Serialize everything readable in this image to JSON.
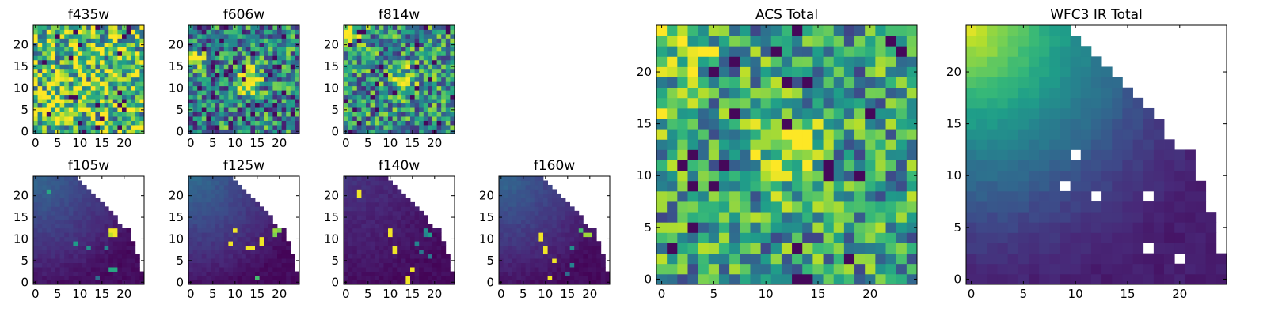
{
  "figure": {
    "background": "#ffffff"
  },
  "colormap": {
    "name": "viridis",
    "stops": [
      "#440154",
      "#482878",
      "#3e4989",
      "#31688e",
      "#26828e",
      "#1f9e89",
      "#35b779",
      "#6ece58",
      "#b5de2b",
      "#fde725"
    ]
  },
  "chart_data": [
    {
      "type": "heatmap",
      "title": "f435w",
      "grid_size": 25,
      "pattern": "noise",
      "mean": 0.7,
      "spread": 0.45,
      "seed": 11,
      "hotspots": [],
      "masked": "none",
      "xticks": [
        0,
        5,
        10,
        15,
        20
      ],
      "yticks": [
        0,
        5,
        10,
        15,
        20
      ],
      "xlim": [
        -0.5,
        24.5
      ],
      "ylim": [
        -0.5,
        24.5
      ]
    },
    {
      "type": "heatmap",
      "title": "f606w",
      "grid_size": 25,
      "pattern": "noise",
      "mean": 0.45,
      "spread": 0.4,
      "seed": 23,
      "hotspots": [
        {
          "x": 13,
          "y": 12,
          "r": 2.2,
          "amp": 0.5
        },
        {
          "x": 1,
          "y": 17,
          "r": 1.5,
          "amp": 0.35
        }
      ],
      "masked": "none",
      "xticks": [
        0,
        5,
        10,
        15,
        20
      ],
      "yticks": [
        0,
        5,
        10,
        15,
        20
      ],
      "xlim": [
        -0.5,
        24.5
      ],
      "ylim": [
        -0.5,
        24.5
      ]
    },
    {
      "type": "heatmap",
      "title": "f814w",
      "grid_size": 25,
      "pattern": "noise",
      "mean": 0.5,
      "spread": 0.38,
      "seed": 37,
      "hotspots": [
        {
          "x": 13,
          "y": 12,
          "r": 2.2,
          "amp": 0.35
        },
        {
          "x": 1,
          "y": 23,
          "r": 2.0,
          "amp": 0.5
        }
      ],
      "masked": "none",
      "xticks": [
        0,
        5,
        10,
        15,
        20
      ],
      "yticks": [
        0,
        5,
        10,
        15,
        20
      ],
      "xlim": [
        -0.5,
        24.5
      ],
      "ylim": [
        -0.5,
        24.5
      ]
    },
    {
      "type": "heatmap",
      "title": "f105w",
      "grid_size": 25,
      "pattern": "gradient",
      "corner_level": 0.3,
      "seed": 41,
      "masked": "upper-right",
      "outliers": [
        {
          "x": 17,
          "y": 12,
          "v": 0.98
        },
        {
          "x": 18,
          "y": 12,
          "v": 0.98
        },
        {
          "x": 18,
          "y": 11,
          "v": 0.98
        },
        {
          "x": 17,
          "y": 11,
          "v": 0.9
        },
        {
          "x": 9,
          "y": 9,
          "v": 0.55
        },
        {
          "x": 12,
          "y": 8,
          "v": 0.5
        },
        {
          "x": 16,
          "y": 8,
          "v": 0.45
        },
        {
          "x": 18,
          "y": 3,
          "v": 0.6
        },
        {
          "x": 17,
          "y": 3,
          "v": 0.6
        },
        {
          "x": 3,
          "y": 21,
          "v": 0.6
        },
        {
          "x": 14,
          "y": 1,
          "v": 0.35
        }
      ],
      "xticks": [
        0,
        5,
        10,
        15,
        20
      ],
      "yticks": [
        0,
        5,
        10,
        15,
        20
      ],
      "xlim": [
        -0.5,
        24.5
      ],
      "ylim": [
        -0.5,
        24.5
      ]
    },
    {
      "type": "heatmap",
      "title": "f125w",
      "grid_size": 25,
      "pattern": "gradient",
      "corner_level": 0.32,
      "seed": 53,
      "masked": "upper-right",
      "outliers": [
        {
          "x": 19,
          "y": 12,
          "v": 0.85
        },
        {
          "x": 20,
          "y": 12,
          "v": 0.8
        },
        {
          "x": 19,
          "y": 11,
          "v": 0.8
        },
        {
          "x": 10,
          "y": 12,
          "v": 0.98
        },
        {
          "x": 9,
          "y": 9,
          "v": 0.98
        },
        {
          "x": 13,
          "y": 8,
          "v": 0.98
        },
        {
          "x": 14,
          "y": 8,
          "v": 0.98
        },
        {
          "x": 16,
          "y": 10,
          "v": 0.98
        },
        {
          "x": 16,
          "y": 9,
          "v": 0.98
        },
        {
          "x": 15,
          "y": 1,
          "v": 0.7
        }
      ],
      "xticks": [
        0,
        5,
        10,
        15,
        20
      ],
      "yticks": [
        0,
        5,
        10,
        15,
        20
      ],
      "xlim": [
        -0.5,
        24.5
      ],
      "ylim": [
        -0.5,
        24.5
      ]
    },
    {
      "type": "heatmap",
      "title": "f140w",
      "grid_size": 25,
      "pattern": "gradient",
      "corner_level": 0.12,
      "seed": 67,
      "masked": "upper-right",
      "outliers": [
        {
          "x": 3,
          "y": 21,
          "v": 0.98
        },
        {
          "x": 3,
          "y": 20,
          "v": 0.98
        },
        {
          "x": 10,
          "y": 11,
          "v": 0.98
        },
        {
          "x": 10,
          "y": 12,
          "v": 0.98
        },
        {
          "x": 11,
          "y": 8,
          "v": 0.98
        },
        {
          "x": 11,
          "y": 7,
          "v": 0.98
        },
        {
          "x": 15,
          "y": 3,
          "v": 0.98
        },
        {
          "x": 14,
          "y": 0,
          "v": 0.98
        },
        {
          "x": 14,
          "y": 1,
          "v": 0.98
        },
        {
          "x": 18,
          "y": 12,
          "v": 0.5
        },
        {
          "x": 19,
          "y": 11,
          "v": 0.55
        },
        {
          "x": 18,
          "y": 11,
          "v": 0.45
        },
        {
          "x": 16,
          "y": 9,
          "v": 0.45
        },
        {
          "x": 17,
          "y": 7,
          "v": 0.4
        },
        {
          "x": 19,
          "y": 6,
          "v": 0.4
        }
      ],
      "xticks": [
        0,
        5,
        10,
        15,
        20
      ],
      "yticks": [
        0,
        5,
        10,
        15,
        20
      ],
      "xlim": [
        -0.5,
        24.5
      ],
      "ylim": [
        -0.5,
        24.5
      ]
    },
    {
      "type": "heatmap",
      "title": "f160w",
      "grid_size": 25,
      "pattern": "gradient",
      "corner_level": 0.3,
      "seed": 79,
      "masked": "upper-right",
      "outliers": [
        {
          "x": 19,
          "y": 11,
          "v": 0.85
        },
        {
          "x": 20,
          "y": 11,
          "v": 0.85
        },
        {
          "x": 18,
          "y": 12,
          "v": 0.7
        },
        {
          "x": 9,
          "y": 11,
          "v": 0.98
        },
        {
          "x": 9,
          "y": 10,
          "v": 0.98
        },
        {
          "x": 10,
          "y": 8,
          "v": 0.98
        },
        {
          "x": 10,
          "y": 7,
          "v": 0.98
        },
        {
          "x": 12,
          "y": 5,
          "v": 0.98
        },
        {
          "x": 11,
          "y": 1,
          "v": 0.98
        },
        {
          "x": 16,
          "y": 8,
          "v": 0.5
        },
        {
          "x": 16,
          "y": 4,
          "v": 0.45
        },
        {
          "x": 15,
          "y": 2,
          "v": 0.35
        }
      ],
      "xticks": [
        0,
        5,
        10,
        15,
        20
      ],
      "yticks": [
        0,
        5,
        10,
        15,
        20
      ],
      "xlim": [
        -0.5,
        24.5
      ],
      "ylim": [
        -0.5,
        24.5
      ]
    },
    {
      "type": "heatmap",
      "title": "ACS Total",
      "grid_size": 25,
      "pattern": "noise",
      "mean": 0.55,
      "spread": 0.35,
      "seed": 97,
      "hotspots": [
        {
          "x": 12,
          "y": 12,
          "r": 2.3,
          "amp": 0.4
        },
        {
          "x": 1,
          "y": 16,
          "r": 1.3,
          "amp": 0.35
        },
        {
          "x": 2,
          "y": 23,
          "r": 2.5,
          "amp": 0.3
        }
      ],
      "masked": "none",
      "xticks": [
        0,
        5,
        10,
        15,
        20
      ],
      "yticks": [
        0,
        5,
        10,
        15,
        20
      ],
      "xlim": [
        -0.5,
        24.5
      ],
      "ylim": [
        -0.5,
        24.5
      ]
    },
    {
      "type": "heatmap",
      "title": "WFC3 IR Total",
      "grid_size": 25,
      "pattern": "gradient",
      "corner_level": 0.95,
      "seed": 101,
      "masked": "upper-right",
      "holes": [
        {
          "x": 10,
          "y": 12
        },
        {
          "x": 9,
          "y": 9
        },
        {
          "x": 12,
          "y": 8
        },
        {
          "x": 17,
          "y": 8
        },
        {
          "x": 17,
          "y": 3
        },
        {
          "x": 20,
          "y": 2
        }
      ],
      "xticks": [
        0,
        5,
        10,
        15,
        20
      ],
      "yticks": [
        0,
        5,
        10,
        15,
        20
      ],
      "xlim": [
        -0.5,
        24.5
      ],
      "ylim": [
        -0.5,
        24.5
      ]
    }
  ]
}
